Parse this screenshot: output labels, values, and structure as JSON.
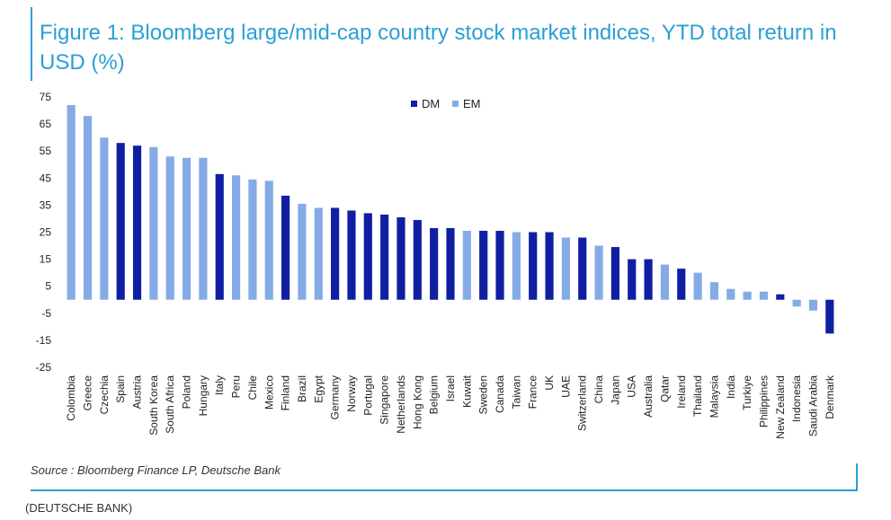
{
  "title": "Figure 1: Bloomberg large/mid-cap country stock market indices, YTD total return in USD (%)",
  "source": "Source : Bloomberg Finance LP, Deutsche Bank",
  "credit": "(DEUTSCHE BANK)",
  "colors": {
    "DM": "#101fa2",
    "EM": "#85abe6",
    "accent": "#2b9fd6"
  },
  "chart_data": {
    "type": "bar",
    "title": "Bloomberg large/mid-cap country stock market indices, YTD total return in USD (%)",
    "xlabel": "",
    "ylabel": "",
    "ylim": [
      -25,
      75
    ],
    "yticks": [
      75,
      65,
      55,
      45,
      35,
      25,
      15,
      5,
      -5,
      -15,
      -25
    ],
    "grid": false,
    "legend": {
      "position": "top-center",
      "entries": [
        "DM",
        "EM"
      ]
    },
    "categories": [
      "Colombia",
      "Greece",
      "Czechia",
      "Spain",
      "Austria",
      "South Korea",
      "South Africa",
      "Poland",
      "Hungary",
      "Italy",
      "Peru",
      "Chile",
      "Mexico",
      "Finland",
      "Brazil",
      "Egypt",
      "Germany",
      "Norway",
      "Portugal",
      "Singapore",
      "Netherlands",
      "Hong Kong",
      "Belgium",
      "Israel",
      "Kuwait",
      "Sweden",
      "Canada",
      "Taiwan",
      "France",
      "UK",
      "UAE",
      "Switzerland",
      "China",
      "Japan",
      "USA",
      "Australia",
      "Qatar",
      "Ireland",
      "Thailand",
      "Malaysia",
      "India",
      "Turkiye",
      "Philippines",
      "New Zealand",
      "Indonesia",
      "Saudi Arabia",
      "Denmark"
    ],
    "values": [
      72,
      68,
      60,
      58,
      57,
      56.5,
      53,
      52.5,
      52.5,
      46.5,
      46,
      44.5,
      44,
      38.5,
      35.5,
      34,
      34,
      33,
      32,
      31.5,
      30.5,
      29.5,
      26.5,
      26.5,
      25.5,
      25.5,
      25.5,
      25,
      25,
      25,
      23,
      23,
      20,
      19.5,
      15,
      15,
      13,
      11.5,
      10,
      6.5,
      4,
      3,
      3,
      2,
      -2.5,
      -4,
      -12.5
    ],
    "groups": [
      "EM",
      "EM",
      "EM",
      "DM",
      "DM",
      "EM",
      "EM",
      "EM",
      "EM",
      "DM",
      "EM",
      "EM",
      "EM",
      "DM",
      "EM",
      "EM",
      "DM",
      "DM",
      "DM",
      "DM",
      "DM",
      "DM",
      "DM",
      "DM",
      "EM",
      "DM",
      "DM",
      "EM",
      "DM",
      "DM",
      "EM",
      "DM",
      "EM",
      "DM",
      "DM",
      "DM",
      "EM",
      "DM",
      "EM",
      "EM",
      "EM",
      "EM",
      "EM",
      "DM",
      "EM",
      "EM",
      "DM"
    ]
  }
}
